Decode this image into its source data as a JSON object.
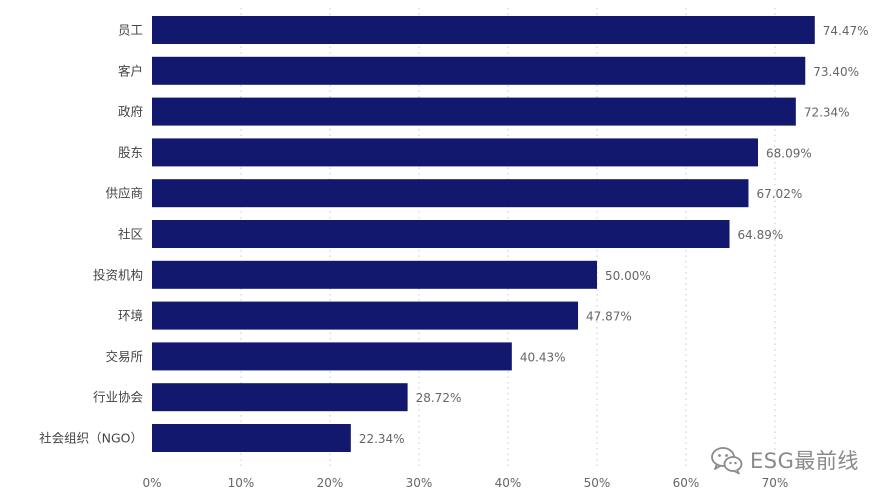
{
  "chart_data": {
    "type": "bar",
    "orientation": "horizontal",
    "categories": [
      "员工",
      "客户",
      "政府",
      "股东",
      "供应商",
      "社区",
      "投资机构",
      "环境",
      "交易所",
      "行业协会",
      "社会组织（NGO）"
    ],
    "values": [
      74.47,
      73.4,
      72.34,
      68.09,
      67.02,
      64.89,
      50.0,
      47.87,
      40.43,
      28.72,
      22.34
    ],
    "value_labels": [
      "74.47%",
      "73.40%",
      "72.34%",
      "68.09%",
      "67.02%",
      "64.89%",
      "50.00%",
      "47.87%",
      "40.43%",
      "28.72%",
      "22.34%"
    ],
    "x_ticks": [
      0,
      10,
      20,
      30,
      40,
      50,
      60,
      70
    ],
    "x_tick_labels": [
      "0%",
      "10%",
      "20%",
      "30%",
      "40%",
      "50%",
      "60%",
      "70%"
    ],
    "xlim": [
      0,
      80
    ],
    "grid": "vertical dotted",
    "bar_color": "#12186e"
  },
  "watermark": {
    "text": "ESG最前线",
    "icon": "wechat-icon"
  }
}
